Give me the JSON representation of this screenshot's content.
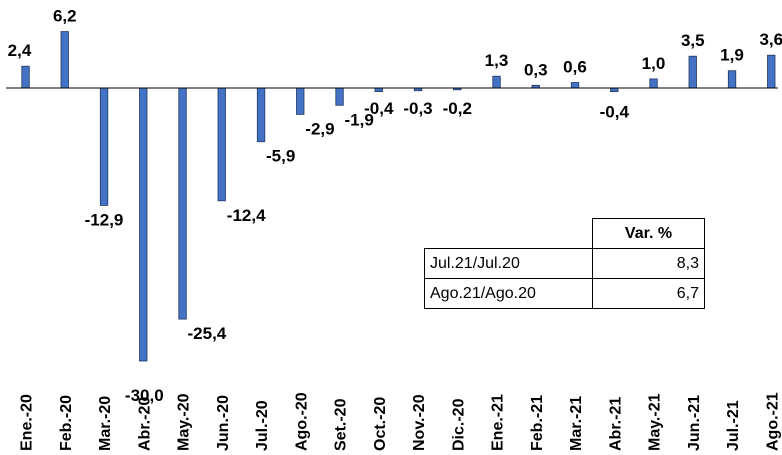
{
  "chart_data": {
    "type": "bar",
    "categories": [
      "Ene.-20",
      "Feb.-20",
      "Mar.-20",
      "Abr.-20",
      "May.-20",
      "Jun.-20",
      "Jul.-20",
      "Ago.-20",
      "Set.-20",
      "Oct.-20",
      "Nov.-20",
      "Dic.-20",
      "Ene.-21",
      "Feb.-21",
      "Mar.-21",
      "Abr.-21",
      "May.-21",
      "Jun.-21",
      "Jul.-21",
      "Ago.-21"
    ],
    "values": [
      2.4,
      6.2,
      -12.9,
      -30.0,
      -25.4,
      -12.4,
      -5.9,
      -2.9,
      -1.9,
      -0.4,
      -0.3,
      -0.2,
      1.3,
      0.3,
      0.6,
      -0.4,
      1.0,
      3.5,
      1.9,
      3.6
    ],
    "value_labels": [
      "2,4",
      "6,2",
      "-12,9",
      "-30,0",
      "-25,4",
      "-12,4",
      "-5,9",
      "-2,9",
      "-1,9",
      "-0,4",
      "-0,3",
      "-0,2",
      "1,3",
      "0,3",
      "0,6",
      "-0,4",
      "1,0",
      "3,5",
      "1,9",
      "3,6"
    ],
    "bar_color": "#4472C4",
    "bar_edge_color": "#1F3864",
    "title": "",
    "xlabel": "",
    "ylabel": "",
    "ylim": [
      -30,
      6.2
    ],
    "grid": false,
    "legend": "none"
  },
  "table": {
    "header": "Var. %",
    "rows": [
      {
        "label": "Jul.21/Jul.20",
        "value": "8,3"
      },
      {
        "label": "Ago.21/Ago.20",
        "value": "6,7"
      }
    ]
  }
}
